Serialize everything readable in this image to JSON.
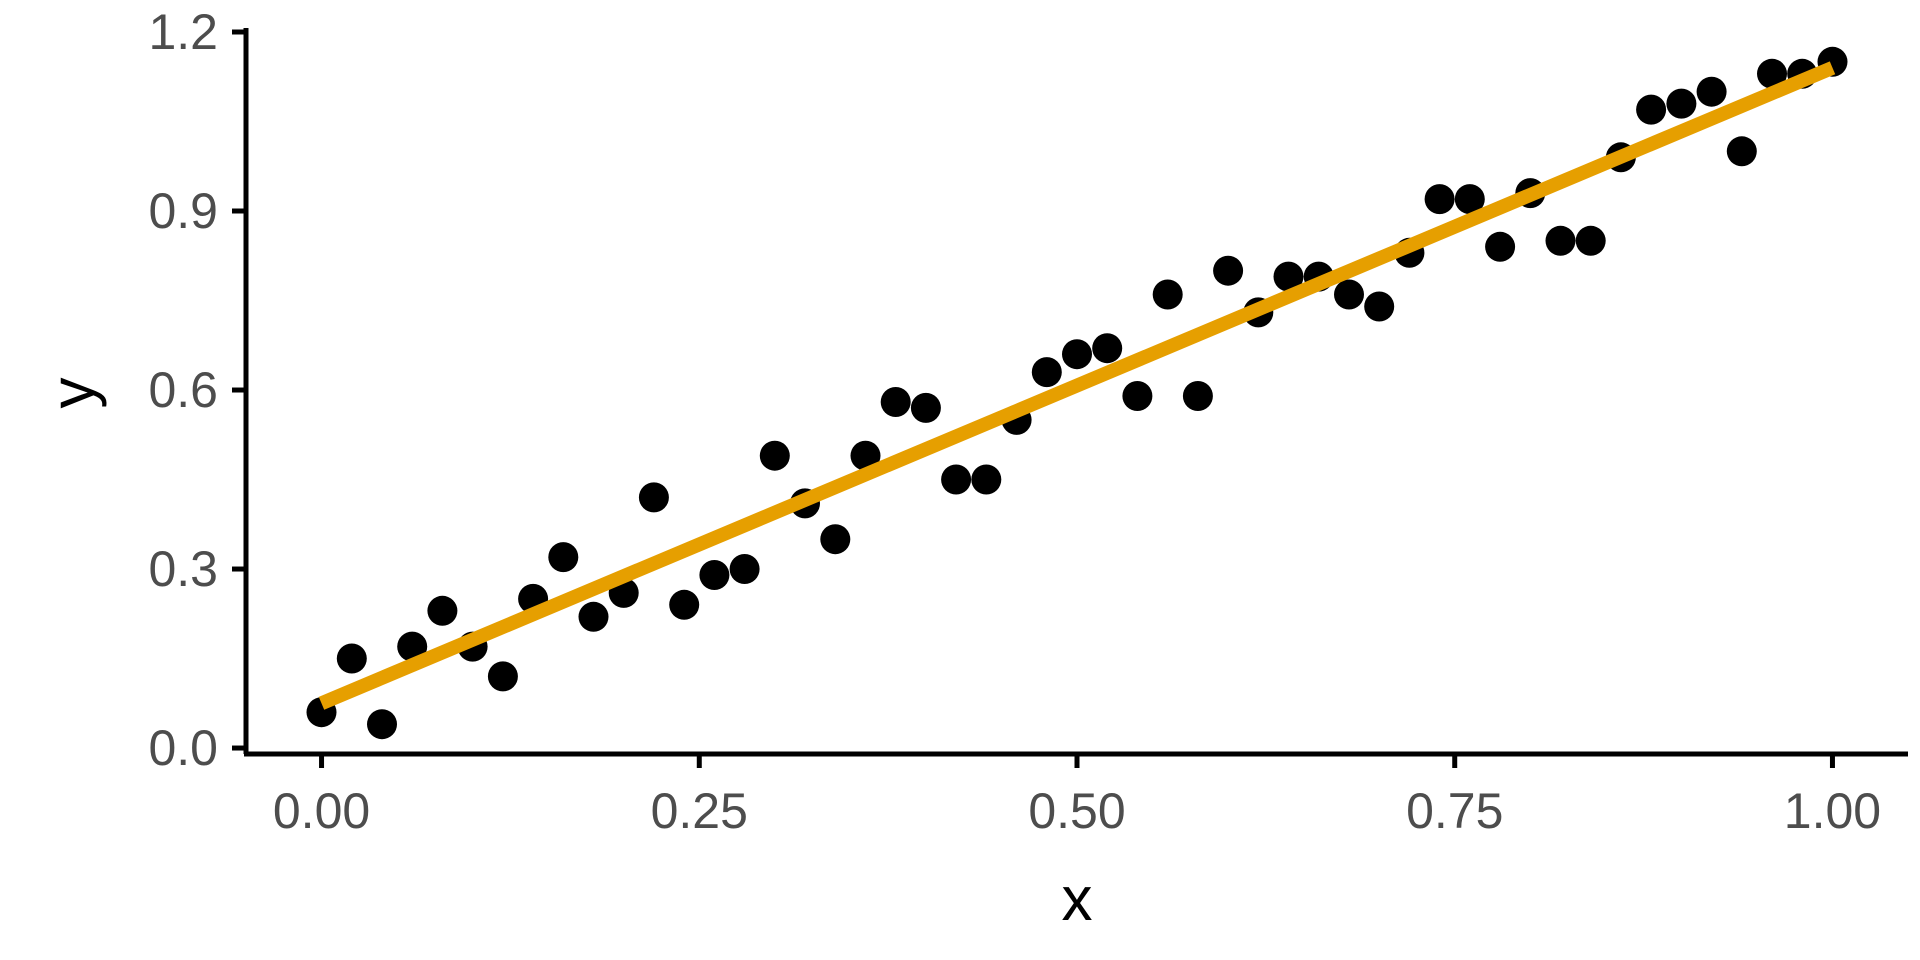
{
  "chart_data": {
    "type": "scatter",
    "title": "",
    "xlabel": "x",
    "ylabel": "y",
    "xlim": [
      -0.05,
      1.05
    ],
    "ylim": [
      -0.01,
      1.2
    ],
    "x_ticks": [
      0.0,
      0.25,
      0.5,
      0.75,
      1.0
    ],
    "x_tick_labels": [
      "0.00",
      "0.25",
      "0.50",
      "0.75",
      "1.00"
    ],
    "y_ticks": [
      0.0,
      0.3,
      0.6,
      0.9,
      1.2
    ],
    "y_tick_labels": [
      "0.0",
      "0.3",
      "0.6",
      "0.9",
      "1.2"
    ],
    "grid": false,
    "legend": "none",
    "colors": {
      "points": "#000000",
      "fit_line": "#E69F00",
      "axis": "#000000",
      "tick_label": "#4d4d4d"
    },
    "series": [
      {
        "kind": "points",
        "x": [
          0.0,
          0.02,
          0.04,
          0.06,
          0.08,
          0.1,
          0.12,
          0.14,
          0.16,
          0.18,
          0.2,
          0.22,
          0.24,
          0.26,
          0.28,
          0.3,
          0.32,
          0.34,
          0.36,
          0.38,
          0.4,
          0.42,
          0.44,
          0.46,
          0.48,
          0.5,
          0.52,
          0.54,
          0.56,
          0.58,
          0.6,
          0.62,
          0.64,
          0.66,
          0.68,
          0.7,
          0.72,
          0.74,
          0.76,
          0.78,
          0.8,
          0.82,
          0.84,
          0.86,
          0.88,
          0.9,
          0.92,
          0.94,
          0.96,
          0.98,
          1.0
        ],
        "y": [
          0.06,
          0.15,
          0.04,
          0.17,
          0.23,
          0.17,
          0.12,
          0.25,
          0.32,
          0.22,
          0.26,
          0.42,
          0.24,
          0.29,
          0.3,
          0.49,
          0.41,
          0.35,
          0.49,
          0.58,
          0.57,
          0.45,
          0.45,
          0.55,
          0.63,
          0.66,
          0.67,
          0.59,
          0.76,
          0.59,
          0.8,
          0.73,
          0.79,
          0.79,
          0.76,
          0.74,
          0.83,
          0.92,
          0.92,
          0.84,
          0.93,
          0.85,
          0.85,
          0.99,
          1.07,
          1.08,
          1.1,
          1.0,
          1.13,
          1.13,
          1.15
        ]
      },
      {
        "kind": "fit-line",
        "x": [
          0.0,
          1.0
        ],
        "y": [
          0.075,
          1.14
        ]
      }
    ]
  }
}
